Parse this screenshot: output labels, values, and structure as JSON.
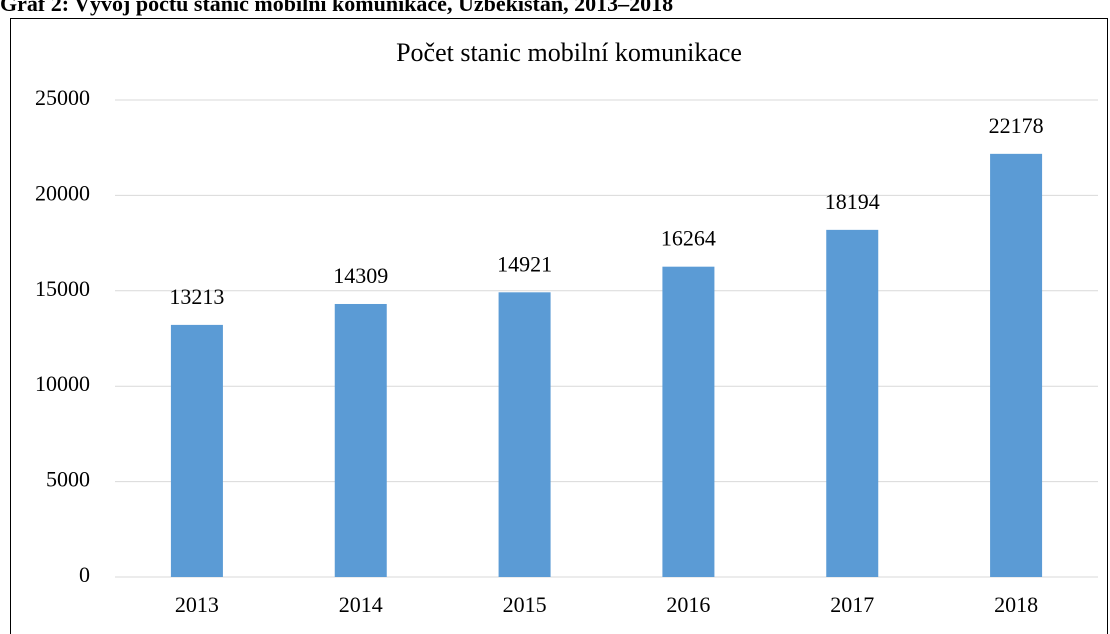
{
  "caption": "Graf 2: Vývoj počtu stanic mobilní komunikace, Uzbekistán, 2013–2018",
  "chart_data": {
    "type": "bar",
    "title": "Počet stanic mobilní komunikace",
    "categories": [
      "2013",
      "2014",
      "2015",
      "2016",
      "2017",
      "2018"
    ],
    "values": [
      13213,
      14309,
      14921,
      16264,
      18194,
      22178
    ],
    "color": "#5b9bd5",
    "ylim": [
      0,
      25000
    ],
    "yticks": [
      0,
      5000,
      10000,
      15000,
      20000,
      25000
    ],
    "grid": true,
    "data_labels": true
  }
}
